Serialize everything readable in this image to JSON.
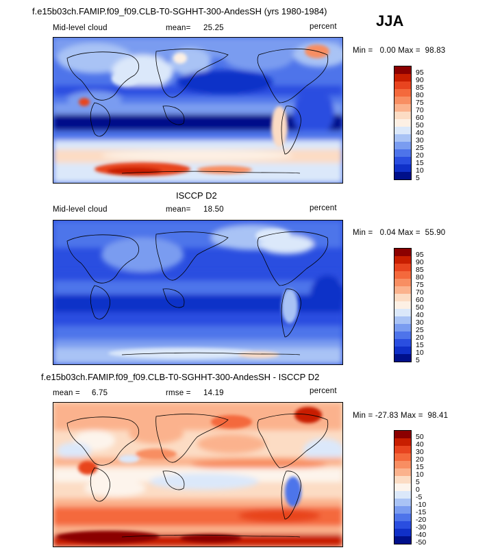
{
  "season": "JJA",
  "panel1": {
    "title": "f.e15b03ch.FAMIP.f09_f09.CLB-T0-SGHHT-300-AndesSH (yrs 1980-1984)",
    "variable": "Mid-level cloud",
    "stat_label": "mean=",
    "stat_value": "25.25",
    "units": "percent",
    "minmax": "Min =   0.00 Max =  98.83",
    "colorbar_labels": [
      "95",
      "90",
      "85",
      "80",
      "75",
      "70",
      "60",
      "50",
      "40",
      "30",
      "25",
      "20",
      "15",
      "10",
      "5"
    ]
  },
  "panel2": {
    "title": "ISCCP D2",
    "variable": "Mid-level cloud",
    "stat_label": "mean=",
    "stat_value": "18.50",
    "units": "percent",
    "minmax": "Min =   0.04 Max =  55.90",
    "colorbar_labels": [
      "95",
      "90",
      "85",
      "80",
      "75",
      "70",
      "60",
      "50",
      "40",
      "30",
      "25",
      "20",
      "15",
      "10",
      "5"
    ]
  },
  "panel3": {
    "title": "f.e15b03ch.FAMIP.f09_f09.CLB-T0-SGHHT-300-AndesSH - ISCCP D2",
    "stat1_label": "mean =",
    "stat1_value": "6.75",
    "stat2_label": "rmse =",
    "stat2_value": "14.19",
    "units": "percent",
    "minmax": "Min = -27.83 Max =  98.41",
    "colorbar_labels": [
      "50",
      "40",
      "30",
      "20",
      "15",
      "10",
      "5",
      "0",
      "-5",
      "-10",
      "-15",
      "-20",
      "-30",
      "-40",
      "-50"
    ]
  },
  "colors": {
    "abs_scale": [
      "#8b0000",
      "#c81e00",
      "#e8441f",
      "#f4693c",
      "#f88e62",
      "#fbb28d",
      "#fcdcc4",
      "#fdf0e4",
      "#dbe8fa",
      "#a9c3f5",
      "#7a9cf0",
      "#4e74ea",
      "#2a4ee0",
      "#1030c8",
      "#00108a"
    ],
    "diff_scale": [
      "#8b0000",
      "#c81e00",
      "#e8441f",
      "#f4693c",
      "#f88e62",
      "#fbb28d",
      "#fcdcc4",
      "#fdf4ec",
      "#dbe8fa",
      "#a9c3f5",
      "#7a9cf0",
      "#4e74ea",
      "#2a4ee0",
      "#1030c8",
      "#00108a"
    ]
  }
}
